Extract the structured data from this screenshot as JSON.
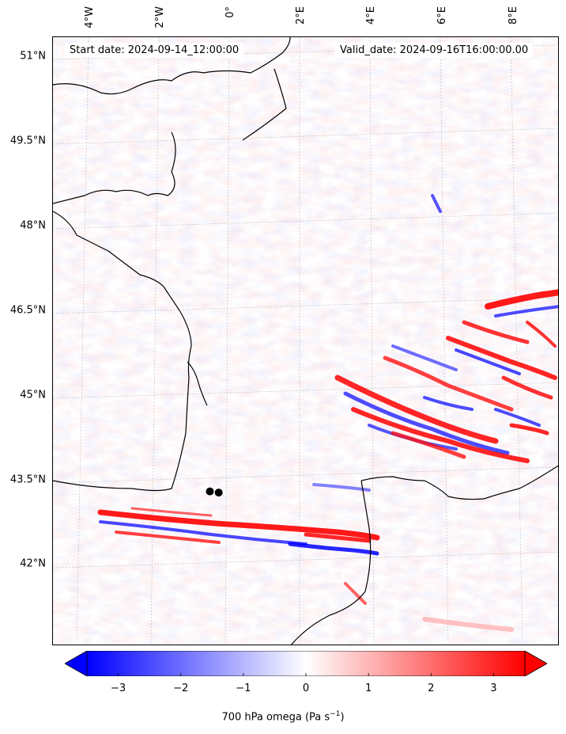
{
  "map": {
    "start_date": "Start date: 2024-09-14_12:00:00",
    "valid_date": "Valid_date: 2024-09-16T16:00:00.00",
    "lat_labels": [
      "51°N",
      "49.5°N",
      "48°N",
      "46.5°N",
      "45°N",
      "43.5°N",
      "42°N"
    ],
    "lon_labels": [
      "4°W",
      "2°W",
      "0°",
      "2°E",
      "4°E",
      "6°E",
      "8°E"
    ],
    "colormap": "bwr",
    "colors": {
      "negative": "#0000ff",
      "zero": "#ffffff",
      "positive": "#ff0000",
      "coastline": "#000000"
    },
    "markers": [
      {
        "name": "station-marker",
        "lon": -0.55,
        "lat": 43.35
      },
      {
        "name": "station-marker",
        "lon": -0.3,
        "lat": 43.33
      }
    ]
  },
  "colorbar": {
    "ticks": [
      "−3",
      "−2",
      "−1",
      "0",
      "1",
      "2",
      "3"
    ],
    "tick_values": [
      -3,
      -2,
      -1,
      0,
      1,
      2,
      3
    ],
    "range": [
      -3.5,
      3.5
    ],
    "extend": "both",
    "label_main": "700 hPa omega (Pa s",
    "label_sup": "−1",
    "label_end": ")"
  }
}
